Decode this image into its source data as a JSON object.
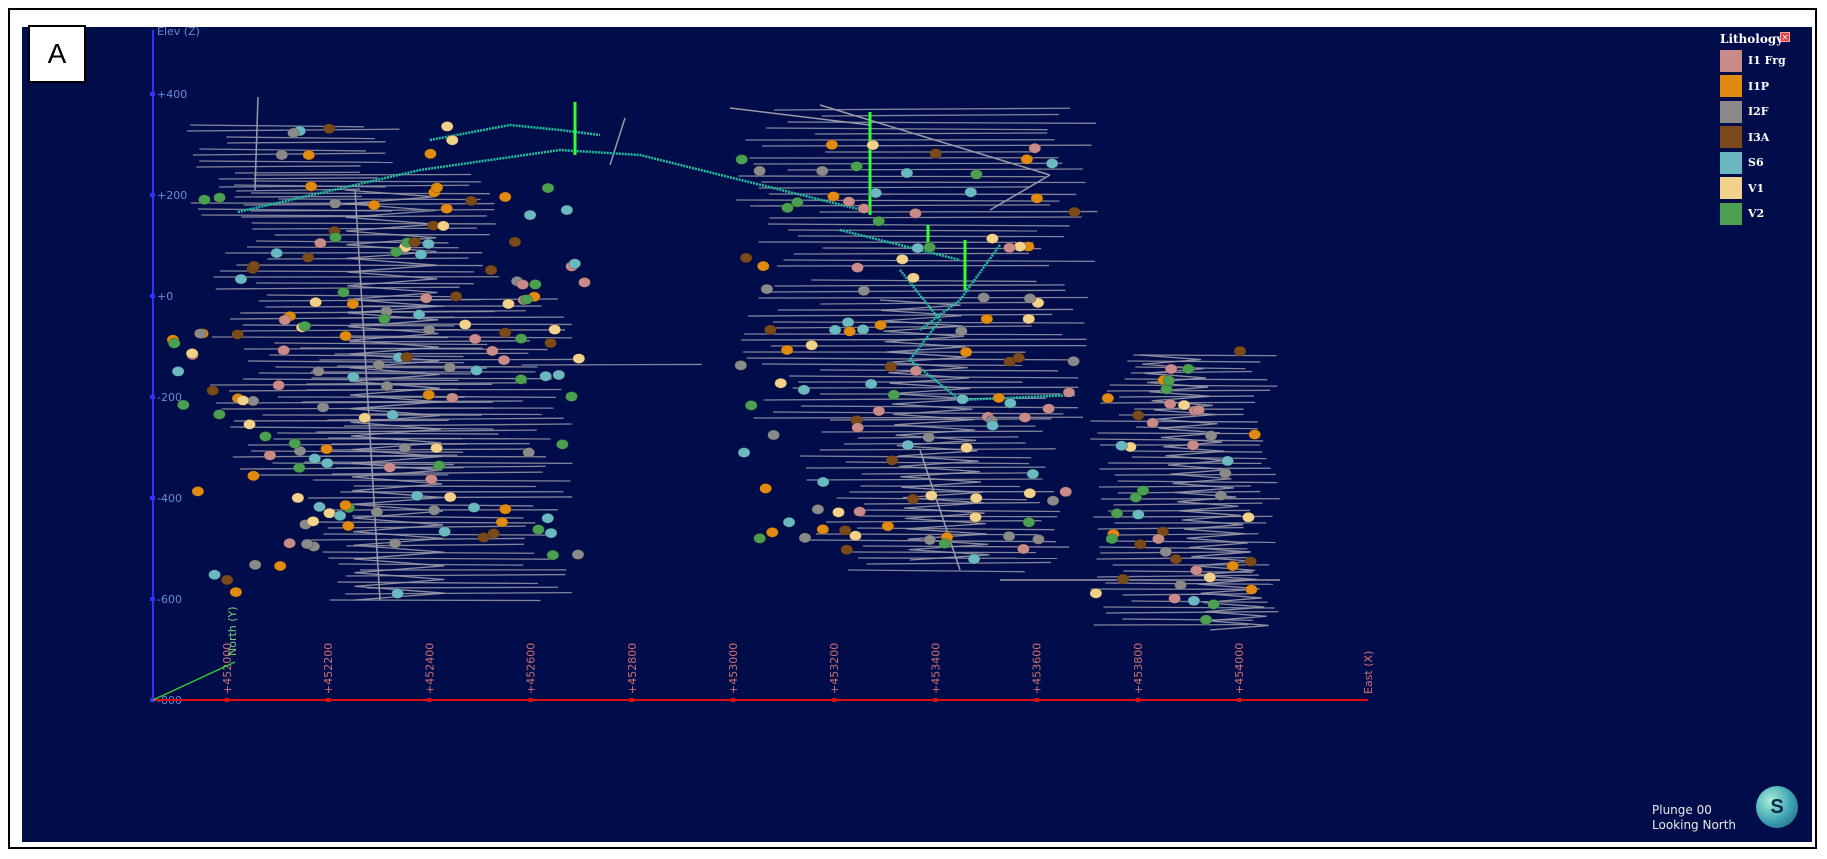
{
  "panel_label": "A",
  "axes": {
    "z_title": "Elev (Z)",
    "z_ticks": [
      "+400",
      "+200",
      "+0",
      "-200",
      "-400",
      "-600",
      "-800"
    ],
    "x_ticks": [
      "+452000",
      "+452200",
      "+452400",
      "+452600",
      "+452800",
      "+453000",
      "+453200",
      "+453400",
      "+453600",
      "+453800",
      "+454000"
    ],
    "x_title": "East (X)",
    "y_title": "North (Y)"
  },
  "legend": {
    "title": "Lithology",
    "close_icon": "close-icon",
    "items": [
      {
        "label": "I1 Frg",
        "color": "#c98a8a"
      },
      {
        "label": "I1P",
        "color": "#e08a10"
      },
      {
        "label": "I2F",
        "color": "#8a8a8a"
      },
      {
        "label": "I3A",
        "color": "#7a4a1a"
      },
      {
        "label": "S6",
        "color": "#6ab8c0"
      },
      {
        "label": "V1",
        "color": "#f2d28a"
      },
      {
        "label": "V2",
        "color": "#4aa050"
      }
    ]
  },
  "view_info": {
    "plunge": "Plunge 00",
    "direction": "Looking North"
  },
  "logo": {
    "letter": "S",
    "icon": "logo-icon"
  },
  "colors": {
    "background": "#010c4a",
    "axis_z": "#3030ff",
    "axis_x": "#e01010",
    "axis_y": "#30d030",
    "tick_label_z": "#6a8ad8",
    "tick_label_x": "#d07070",
    "drillhole": "#9a9aa8",
    "underground_workings": "#20c0a0",
    "raise": "#30ff30"
  }
}
